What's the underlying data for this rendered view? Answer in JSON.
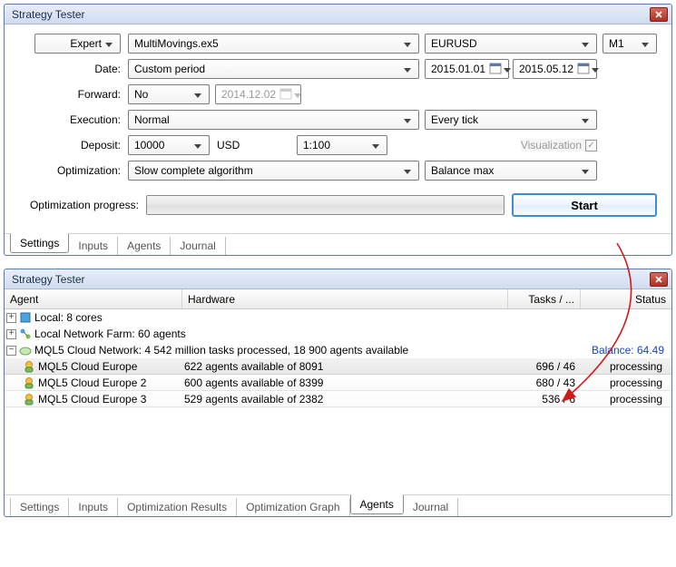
{
  "colors": {
    "window_border": "#5a7aa8",
    "titlebar_grad_from": "#e8eef8",
    "titlebar_grad_to": "#cfdcef",
    "close_btn": "#b03022",
    "start_border": "#3f8ec9",
    "balance_link": "#1446c4",
    "arrow": "#d11a1a"
  },
  "win1": {
    "title": "Strategy Tester",
    "mode": "Expert",
    "ea_file": "MultiMovings.ex5",
    "symbol": "EURUSD",
    "timeframe": "M1",
    "labels": {
      "date": "Date:",
      "forward": "Forward:",
      "execution": "Execution:",
      "deposit": "Deposit:",
      "optimization": "Optimization:",
      "opt_progress": "Optimization progress:",
      "visualization": "Visualization"
    },
    "date_mode": "Custom period",
    "date_from": "2015.01.01",
    "date_to": "2015.05.12",
    "forward_mode": "No",
    "forward_date": "2014.12.02",
    "execution_mode": "Normal",
    "model": "Every tick",
    "deposit_value": "10000",
    "deposit_currency": "USD",
    "leverage": "1:100",
    "visualization_checked": true,
    "optimization_mode": "Slow complete algorithm",
    "optimization_criterion": "Balance max",
    "start_button": "Start",
    "tabs": [
      "Settings",
      "Inputs",
      "Agents",
      "Journal"
    ],
    "active_tab": 0
  },
  "win2": {
    "title": "Strategy Tester",
    "columns": {
      "agent": "Agent",
      "hardware": "Hardware",
      "tasks": "Tasks / ...",
      "status": "Status"
    },
    "local": {
      "label": "Local: 8 cores",
      "expanded": false
    },
    "farm": {
      "label": "Local Network Farm: 60 agents",
      "expanded": false
    },
    "cloud": {
      "label": "MQL5 Cloud Network: 4 542 million tasks processed, 18 900 agents available",
      "balance": "Balance: 64.49",
      "expanded": true,
      "rows": [
        {
          "name": "MQL5 Cloud Europe",
          "hardware": "622 agents available of 8091",
          "tasks": "696 / 46",
          "status": "processing",
          "highlighted": true
        },
        {
          "name": "MQL5 Cloud Europe 2",
          "hardware": "600 agents available of 8399",
          "tasks": "680 / 43",
          "status": "processing",
          "highlighted": false
        },
        {
          "name": "MQL5 Cloud Europe 3",
          "hardware": "529 agents available of 2382",
          "tasks": "536 / 6",
          "status": "processing",
          "highlighted": false
        }
      ]
    },
    "tabs": [
      "Settings",
      "Inputs",
      "Optimization Results",
      "Optimization Graph",
      "Agents",
      "Journal"
    ],
    "active_tab": 4
  }
}
